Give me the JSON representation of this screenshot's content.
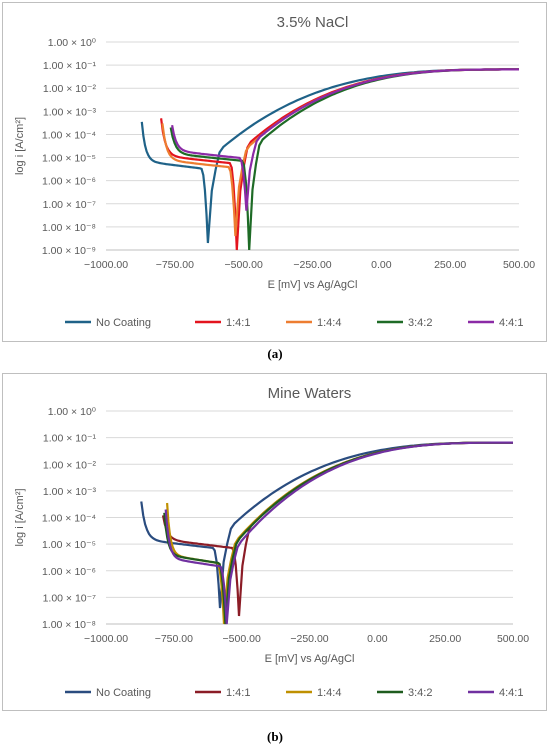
{
  "captions": [
    "(a)",
    "(b)"
  ],
  "chart_data": [
    {
      "type": "line",
      "title": "3.5% NaCl",
      "xlabel": "E [mV] vs Ag/AgCl",
      "ylabel": "log i [A/cm²]",
      "xlim": [
        -1000,
        500
      ],
      "ylim_exponent": [
        -9,
        0
      ],
      "y_scale": "log",
      "xticks": [
        "−1000.00",
        "−750.00",
        "−500.00",
        "−250.00",
        "0.00",
        "250.00",
        "500.00"
      ],
      "yticks": [
        "1.00 × 10⁰",
        "1.00 × 10⁻¹",
        "1.00 × 10⁻²",
        "1.00 × 10⁻³",
        "1.00 × 10⁻⁴",
        "1.00 × 10⁻⁵",
        "1.00 × 10⁻⁶",
        "1.00 × 10⁻⁷",
        "1.00 × 10⁻⁸",
        "1.00 × 10⁻⁹"
      ],
      "grid": true,
      "legend": "bottom",
      "series": [
        {
          "name": "No Coating",
          "color": "#1f6288",
          "ecorr": -630,
          "e_start": -870,
          "i_start": 0.00035,
          "i_pass": 7e-06,
          "i_min": 2e-09
        },
        {
          "name": "1:4:1",
          "color": "#e3141e",
          "ecorr": -525,
          "e_start": -800,
          "i_start": 0.0005,
          "i_pass": 1.2e-05,
          "i_min": 1e-09
        },
        {
          "name": "1:4:4",
          "color": "#ed7d31",
          "ecorr": -530,
          "e_start": -795,
          "i_start": 0.0003,
          "i_pass": 8e-06,
          "i_min": 4e-09
        },
        {
          "name": "3:4:2",
          "color": "#1e6b26",
          "ecorr": -480,
          "e_start": -765,
          "i_start": 0.0002,
          "i_pass": 1.5e-05,
          "i_min": 1e-09
        },
        {
          "name": "4:4:1",
          "color": "#8b2aa6",
          "ecorr": -490,
          "e_start": -760,
          "i_start": 0.00025,
          "i_pass": 2e-05,
          "i_min": 5e-08
        }
      ]
    },
    {
      "type": "line",
      "title": "Mine Waters",
      "xlabel": "E [mV] vs Ag/AgCl",
      "ylabel": "log i [A/cm²]",
      "xlim": [
        -1000,
        500
      ],
      "ylim_exponent": [
        -8,
        0
      ],
      "y_scale": "log",
      "xticks": [
        "−1000.00",
        "−750.00",
        "−500.00",
        "−250.00",
        "0.00",
        "250.00",
        "500.00"
      ],
      "yticks": [
        "1.00 × 10⁰",
        "1.00 × 10⁻¹",
        "1.00 × 10⁻²",
        "1.00 × 10⁻³",
        "1.00 × 10⁻⁴",
        "1.00 × 10⁻⁵",
        "1.00 × 10⁻⁶",
        "1.00 × 10⁻⁷",
        "1.00 × 10⁻⁸"
      ],
      "grid": true,
      "legend": "bottom",
      "series": [
        {
          "name": "No Coating",
          "color": "#2a4c7f",
          "ecorr": -580,
          "e_start": -870,
          "i_start": 0.0004,
          "i_pass": 1.5e-05,
          "i_min": 4e-08
        },
        {
          "name": "1:4:1",
          "color": "#8b1c26",
          "ecorr": -510,
          "e_start": -790,
          "i_start": 0.00012,
          "i_pass": 1.5e-05,
          "i_min": 2e-08
        },
        {
          "name": "1:4:4",
          "color": "#bf9000",
          "ecorr": -565,
          "e_start": -775,
          "i_start": 0.00035,
          "i_pass": 4e-06,
          "i_min": 1e-08
        },
        {
          "name": "3:4:2",
          "color": "#1e5c1e",
          "ecorr": -560,
          "e_start": -785,
          "i_start": 0.00015,
          "i_pass": 4e-06,
          "i_min": 1e-08
        },
        {
          "name": "4:4:1",
          "color": "#7030a0",
          "ecorr": -555,
          "e_start": -780,
          "i_start": 0.0002,
          "i_pass": 3e-06,
          "i_min": 1e-08
        }
      ]
    }
  ]
}
